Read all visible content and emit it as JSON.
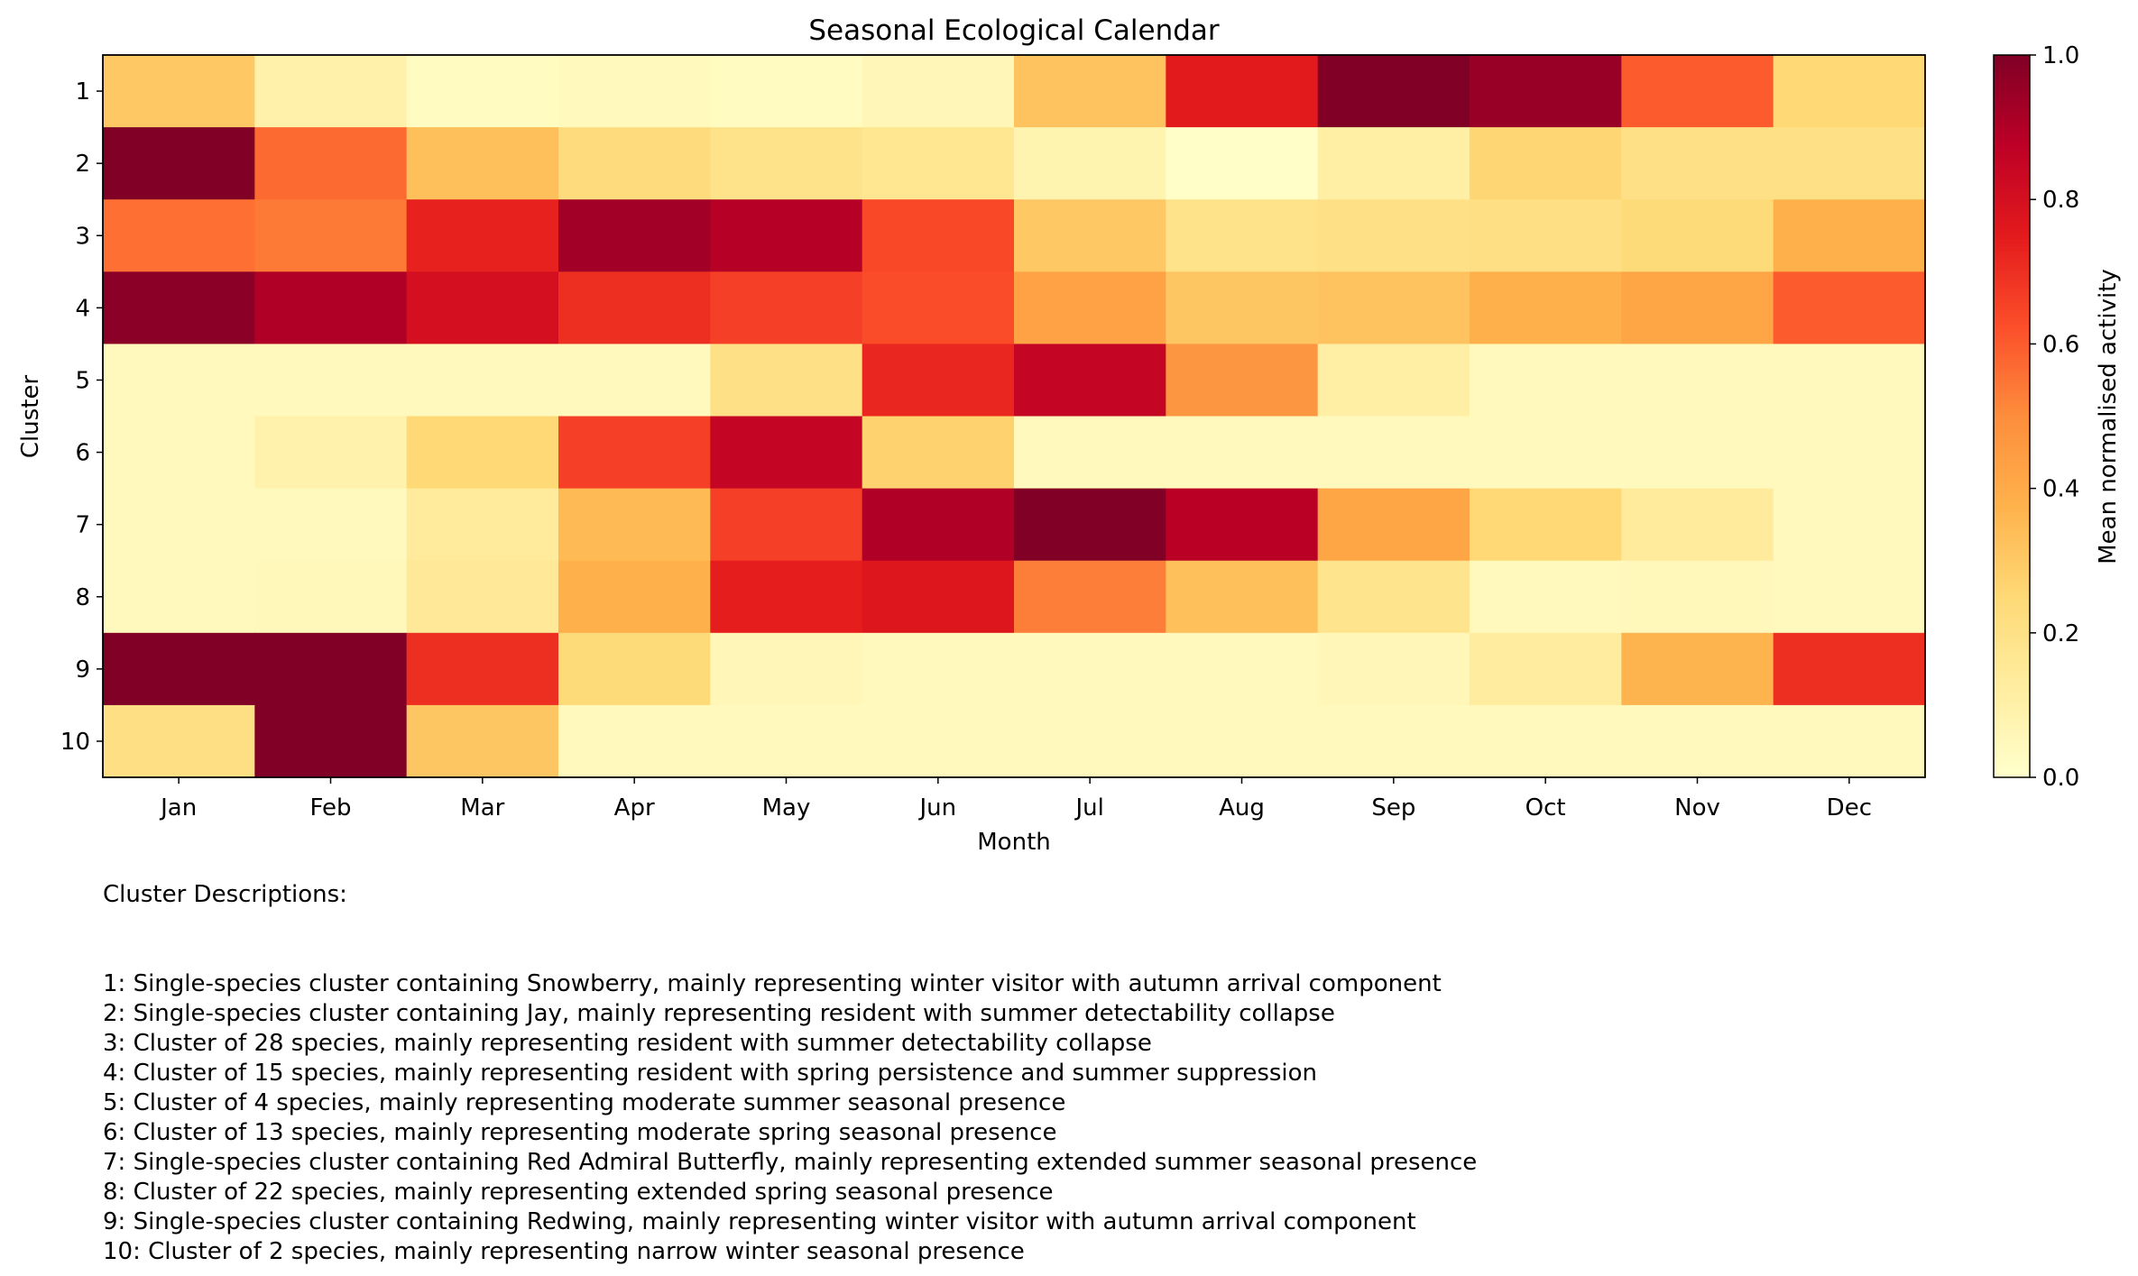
{
  "chart_data": {
    "type": "heatmap",
    "title": "Seasonal Ecological Calendar",
    "xlabel": "Month",
    "ylabel": "Cluster",
    "x_categories": [
      "Jan",
      "Feb",
      "Mar",
      "Apr",
      "May",
      "Jun",
      "Jul",
      "Aug",
      "Sep",
      "Oct",
      "Nov",
      "Dec"
    ],
    "y_categories": [
      "1",
      "2",
      "3",
      "4",
      "5",
      "6",
      "7",
      "8",
      "9",
      "10"
    ],
    "values": [
      [
        0.3,
        0.1,
        0.03,
        0.04,
        0.03,
        0.06,
        0.32,
        0.75,
        1.0,
        0.95,
        0.6,
        0.25
      ],
      [
        1.0,
        0.57,
        0.33,
        0.23,
        0.19,
        0.17,
        0.08,
        0.01,
        0.11,
        0.26,
        0.2,
        0.2
      ],
      [
        0.56,
        0.54,
        0.73,
        0.93,
        0.89,
        0.64,
        0.3,
        0.19,
        0.2,
        0.21,
        0.24,
        0.38
      ],
      [
        0.98,
        0.9,
        0.8,
        0.7,
        0.66,
        0.63,
        0.43,
        0.31,
        0.32,
        0.38,
        0.42,
        0.6
      ],
      [
        0.04,
        0.04,
        0.04,
        0.04,
        0.2,
        0.72,
        0.85,
        0.47,
        0.11,
        0.04,
        0.04,
        0.04
      ],
      [
        0.04,
        0.09,
        0.25,
        0.66,
        0.85,
        0.27,
        0.04,
        0.04,
        0.04,
        0.04,
        0.04,
        0.04
      ],
      [
        0.04,
        0.04,
        0.14,
        0.35,
        0.66,
        0.9,
        1.0,
        0.88,
        0.42,
        0.25,
        0.14,
        0.04
      ],
      [
        0.04,
        0.05,
        0.15,
        0.38,
        0.74,
        0.77,
        0.53,
        0.33,
        0.18,
        0.04,
        0.05,
        0.04
      ],
      [
        1.0,
        1.0,
        0.7,
        0.24,
        0.06,
        0.04,
        0.04,
        0.04,
        0.06,
        0.13,
        0.37,
        0.7
      ],
      [
        0.21,
        1.0,
        0.31,
        0.04,
        0.04,
        0.04,
        0.04,
        0.04,
        0.04,
        0.04,
        0.04,
        0.04
      ]
    ],
    "colormap": "YlOrRd",
    "colorbar": {
      "label": "Mean normalised activity",
      "range": [
        0.0,
        1.0
      ],
      "ticks": [
        "0.0",
        "0.2",
        "0.4",
        "0.6",
        "0.8",
        "1.0"
      ]
    },
    "annotations": {
      "heading": "Cluster Descriptions:",
      "lines": [
        "1: Single-species cluster containing Snowberry, mainly representing winter visitor with autumn arrival component",
        "2: Single-species cluster containing Jay, mainly representing resident with summer detectability collapse",
        "3: Cluster of 28 species, mainly representing resident with summer detectability collapse",
        "4: Cluster of 15 species, mainly representing resident with spring persistence and summer suppression",
        "5: Cluster of 4 species, mainly representing moderate summer seasonal presence",
        "6: Cluster of 13 species, mainly representing moderate spring seasonal presence",
        "7: Single-species cluster containing Red Admiral Butterfly, mainly representing extended summer seasonal presence",
        "8: Cluster of 22 species, mainly representing extended spring seasonal presence",
        "9: Single-species cluster containing Redwing, mainly representing winter visitor with autumn arrival component",
        "10: Cluster of 2 species, mainly representing narrow winter seasonal presence"
      ]
    }
  }
}
